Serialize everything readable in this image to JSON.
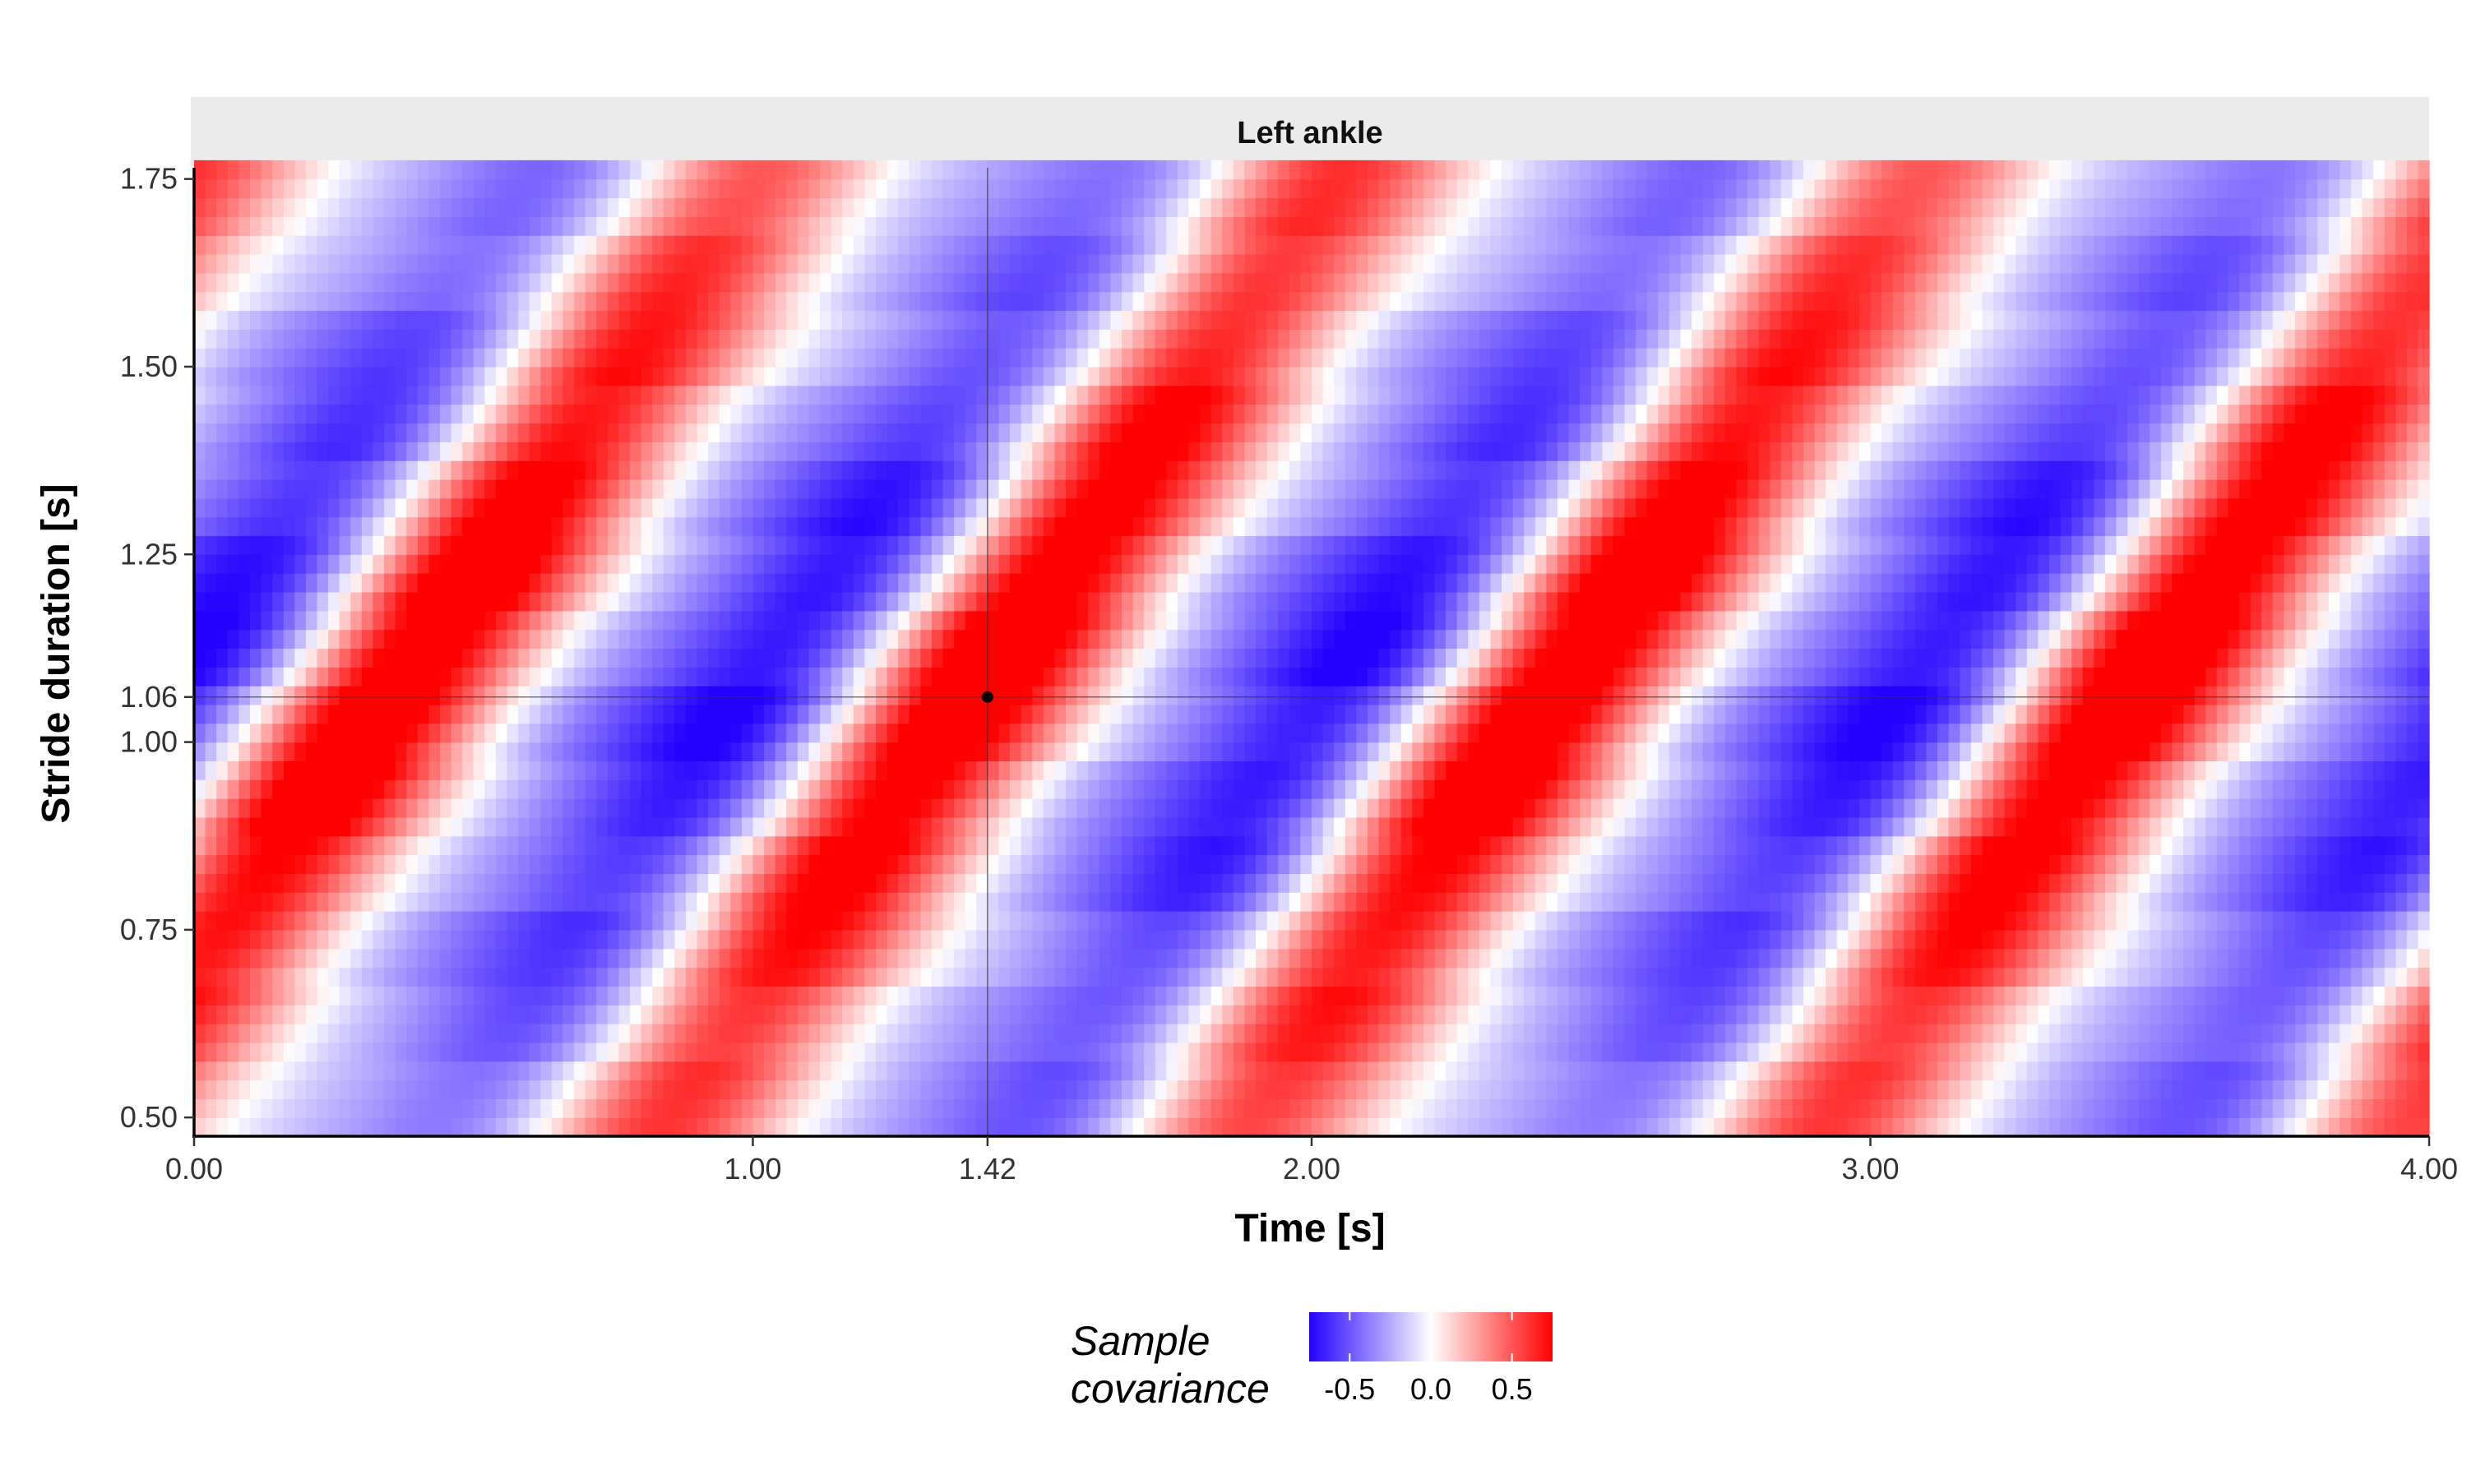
{
  "chart_data": {
    "type": "heatmap",
    "facet_title": "Left ankle",
    "xlabel": "Time [s]",
    "ylabel": "Stride duration [s]",
    "x_range": [
      0.0,
      4.0
    ],
    "y_range": [
      0.475,
      1.765
    ],
    "x_ticks": [
      {
        "value": 0.0,
        "label": "0.00"
      },
      {
        "value": 1.0,
        "label": "1.00"
      },
      {
        "value": 1.42,
        "label": "1.42"
      },
      {
        "value": 2.0,
        "label": "2.00"
      },
      {
        "value": 3.0,
        "label": "3.00"
      },
      {
        "value": 4.0,
        "label": "4.00"
      }
    ],
    "y_ticks": [
      {
        "value": 0.5,
        "label": "0.50"
      },
      {
        "value": 0.75,
        "label": "0.75"
      },
      {
        "value": 1.0,
        "label": "1.00"
      },
      {
        "value": 1.06,
        "label": "1.06"
      },
      {
        "value": 1.25,
        "label": "1.25"
      },
      {
        "value": 1.5,
        "label": "1.50"
      },
      {
        "value": 1.75,
        "label": "1.75"
      }
    ],
    "reference_point": {
      "x": 1.42,
      "y": 1.06
    },
    "colorscale": {
      "title_line1": "Sample",
      "title_line2": "covariance",
      "low_color": "#2200ff",
      "mid_color": "#ffffff",
      "high_color": "#ff0000",
      "range": [
        -0.75,
        0.75
      ],
      "ticks": [
        {
          "value": -0.5,
          "label": "-0.5"
        },
        {
          "value": 0.0,
          "label": "0.0"
        },
        {
          "value": 0.5,
          "label": "0.5"
        }
      ]
    },
    "grid": {
      "x_step": 0.02,
      "y_step": 0.025,
      "pattern": "diagonal bands, period ≈ 1.04 s in time; bands shift later as stride duration increases; positive (red) maxima near (0.35, 1.06), (1.42, 1.06), (2.45, 1.06), (3.50, 1.06); negative (blue) minima near (0.05, 1.25), (1.15, 1.06), (2.20, 1.06), (3.25, 1.06)"
    }
  }
}
